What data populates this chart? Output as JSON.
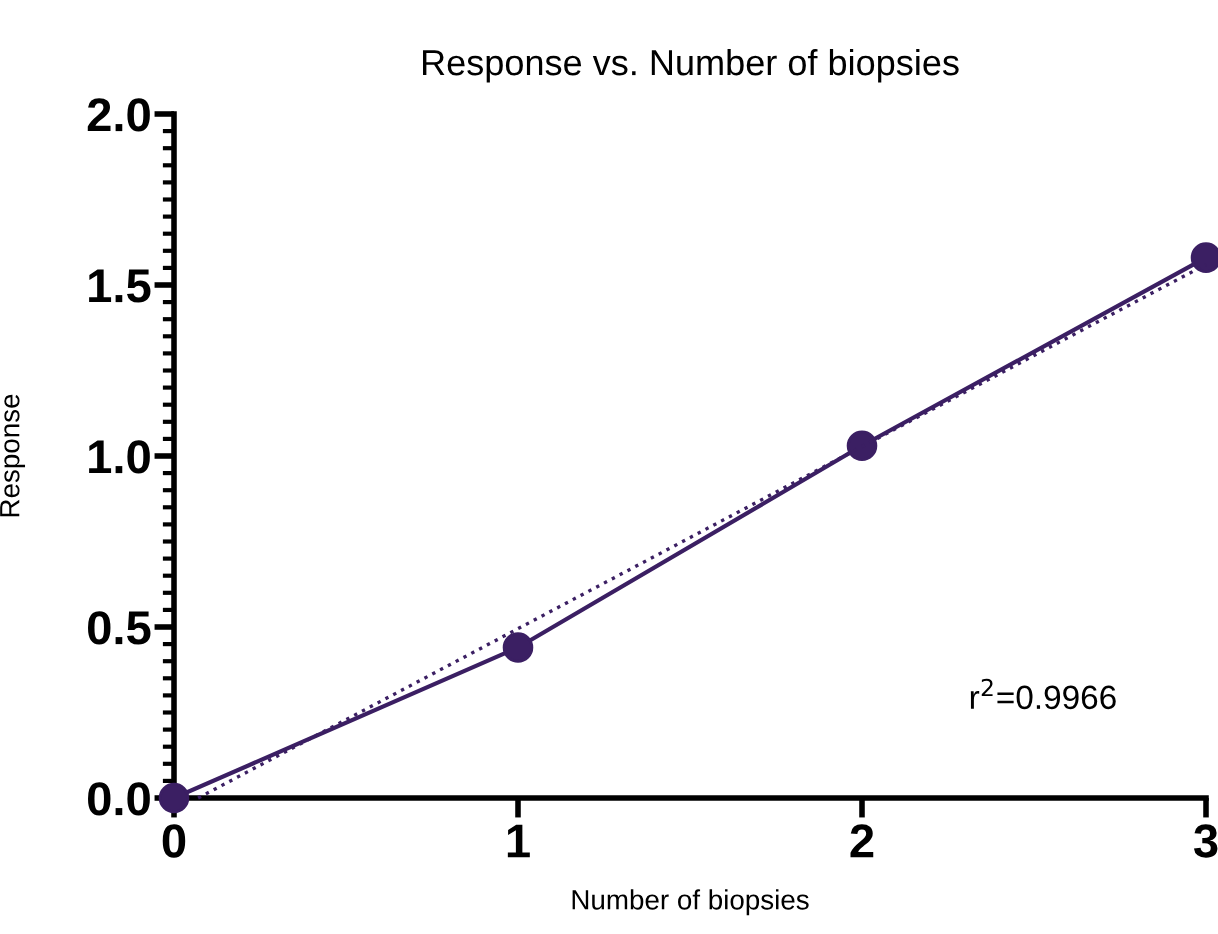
{
  "chart_data": {
    "type": "line",
    "title": "Response vs. Number of biopsies",
    "xlabel": "Number of biopsies",
    "ylabel": "Response",
    "series": [
      {
        "x": [
          0,
          1,
          2,
          3
        ],
        "values": [
          0,
          0.44,
          1.03,
          1.58
        ],
        "color": "#3b1f63",
        "marker": "circle",
        "line_style": "solid"
      },
      {
        "x": [
          0.07,
          3
        ],
        "values": [
          0,
          1.56
        ],
        "color": "#3b1f63",
        "marker": "none",
        "line_style": "dotted"
      }
    ],
    "xlim": [
      0,
      3
    ],
    "xticks": [
      0,
      1,
      2,
      3
    ],
    "ylim": [
      0,
      2.0
    ],
    "yticks": [
      {
        "value": 0,
        "label": "0.0"
      },
      0.5,
      {
        "value": 1.0,
        "label": "1.0"
      },
      1.5,
      {
        "value": 2.0,
        "label": "2.0"
      }
    ],
    "grid": false,
    "legend": false,
    "annotations": [
      "r$^{2}$=0.9966"
    ]
  }
}
